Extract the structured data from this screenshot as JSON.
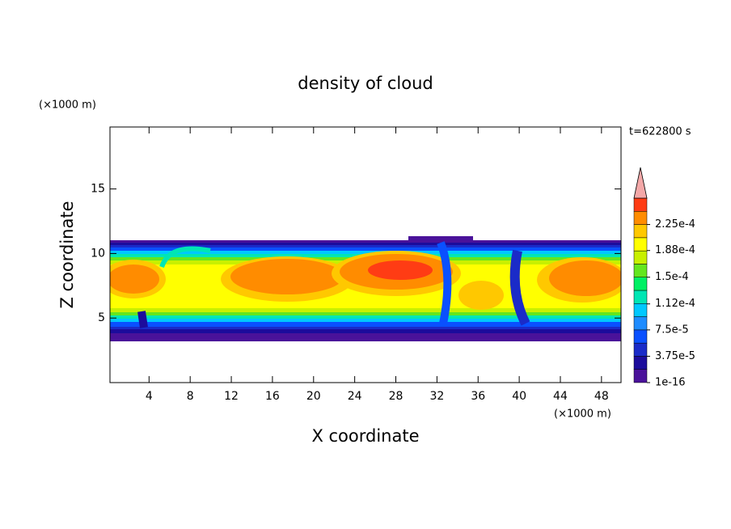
{
  "chart_data": {
    "type": "contour",
    "title": "density of cloud",
    "x_label": "X coordinate",
    "y_label": "Z coordinate",
    "x_unit": "(×1000 m)",
    "y_unit": "(×1000 m)",
    "time_label": "t=622800 s",
    "xlim": [
      0.2,
      49.9
    ],
    "ylim": [
      0,
      19.8
    ],
    "xticks": [
      4,
      8,
      12,
      16,
      20,
      24,
      28,
      32,
      36,
      40,
      44,
      48
    ],
    "yticks": [
      5,
      10,
      15
    ],
    "colorbar": {
      "lim": [
        1e-16,
        0.0002625
      ],
      "colors": [
        "#4a129a",
        "#1c0c9c",
        "#1a2bc8",
        "#0a50ff",
        "#1e8cff",
        "#00c8ff",
        "#00e6b4",
        "#00f064",
        "#64e61e",
        "#c8f000",
        "#ffff00",
        "#ffc800",
        "#ff8c00",
        "#ff3c14"
      ],
      "over_color": "#f4a8a8",
      "ticks": [
        {
          "value": 1e-16,
          "label": "1e-16"
        },
        {
          "value": 3.75e-05,
          "label": "3.75e-5"
        },
        {
          "value": 7.5e-05,
          "label": "7.5e-5"
        },
        {
          "value": 0.000112,
          "label": "1.12e-4"
        },
        {
          "value": 0.00015,
          "label": "1.5e-4"
        },
        {
          "value": 0.000188,
          "label": "1.88e-4"
        },
        {
          "value": 0.000225,
          "label": "2.25e-4"
        }
      ]
    }
  }
}
